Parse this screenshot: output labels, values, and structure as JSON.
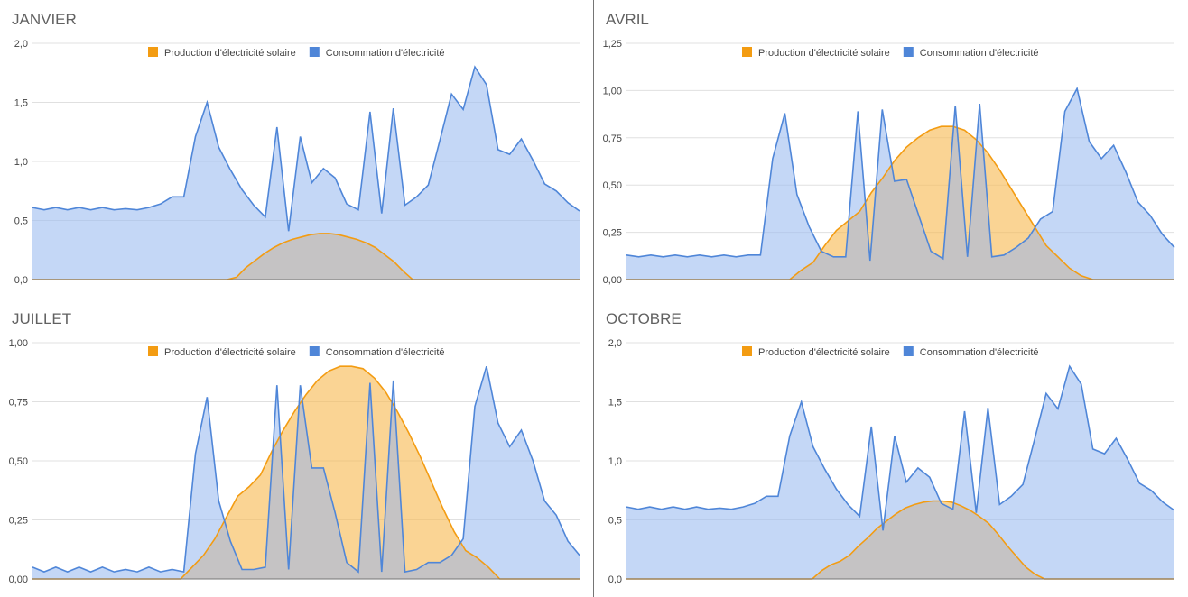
{
  "colors": {
    "production": "#f39c12",
    "production_fill": "#f7bd5a",
    "consommation": "#4f86d8",
    "consommation_fill": "#9dbcf0",
    "overlap_fill": "#c5c3c4",
    "grid": "#e0e0e0",
    "axis": "#757575"
  },
  "chart_data": [
    {
      "type": "area",
      "title": "JANVIER",
      "legend_position": "top",
      "grid": true,
      "ylim": [
        0,
        2.0
      ],
      "yticks": [
        "0,0",
        "0,5",
        "1,0",
        "1,5",
        "2,0"
      ],
      "series": [
        {
          "name": "Production d'électricité solaire",
          "values": [
            0,
            0,
            0,
            0,
            0,
            0,
            0,
            0,
            0,
            0,
            0,
            0,
            0,
            0,
            0,
            0,
            0,
            0,
            0,
            0,
            0,
            0,
            0.02,
            0.1,
            0.16,
            0.22,
            0.27,
            0.31,
            0.34,
            0.36,
            0.38,
            0.39,
            0.39,
            0.38,
            0.36,
            0.34,
            0.31,
            0.27,
            0.21,
            0.15,
            0.07,
            0,
            0,
            0,
            0,
            0,
            0,
            0,
            0,
            0,
            0,
            0,
            0,
            0,
            0,
            0,
            0,
            0,
            0,
            0
          ]
        },
        {
          "name": "Consommation d'électricité",
          "values": [
            0.61,
            0.59,
            0.61,
            0.59,
            0.61,
            0.59,
            0.61,
            0.59,
            0.6,
            0.59,
            0.61,
            0.64,
            0.7,
            0.7,
            1.21,
            1.5,
            1.12,
            0.93,
            0.76,
            0.63,
            0.53,
            1.29,
            0.41,
            1.21,
            0.82,
            0.94,
            0.86,
            0.64,
            0.59,
            1.42,
            0.56,
            1.45,
            0.63,
            0.7,
            0.8,
            1.18,
            1.57,
            1.44,
            1.8,
            1.65,
            1.1,
            1.06,
            1.19,
            1.01,
            0.81,
            0.75,
            0.65,
            0.58
          ]
        }
      ]
    },
    {
      "type": "area",
      "title": "AVRIL",
      "legend_position": "top",
      "grid": true,
      "ylim": [
        0,
        1.25
      ],
      "yticks": [
        "0,00",
        "0,25",
        "0,50",
        "0,75",
        "1,00",
        "1,25"
      ],
      "series": [
        {
          "name": "Production d'électricité solaire",
          "values": [
            0,
            0,
            0,
            0,
            0,
            0,
            0,
            0,
            0,
            0,
            0,
            0,
            0,
            0,
            0,
            0.05,
            0.09,
            0.18,
            0.26,
            0.31,
            0.36,
            0.46,
            0.54,
            0.63,
            0.7,
            0.75,
            0.79,
            0.81,
            0.81,
            0.79,
            0.74,
            0.67,
            0.58,
            0.48,
            0.38,
            0.28,
            0.18,
            0.12,
            0.06,
            0.02,
            0,
            0,
            0,
            0,
            0,
            0,
            0,
            0
          ]
        },
        {
          "name": "Consommation d'électricité",
          "values": [
            0.13,
            0.12,
            0.13,
            0.12,
            0.13,
            0.12,
            0.13,
            0.12,
            0.13,
            0.12,
            0.13,
            0.13,
            0.64,
            0.88,
            0.45,
            0.28,
            0.15,
            0.12,
            0.12,
            0.89,
            0.1,
            0.9,
            0.52,
            0.53,
            0.34,
            0.15,
            0.11,
            0.92,
            0.12,
            0.93,
            0.12,
            0.13,
            0.17,
            0.22,
            0.32,
            0.36,
            0.89,
            1.01,
            0.73,
            0.64,
            0.71,
            0.57,
            0.41,
            0.34,
            0.24,
            0.17
          ]
        }
      ]
    },
    {
      "type": "area",
      "title": "JUILLET",
      "legend_position": "top",
      "grid": true,
      "ylim": [
        0,
        1.0
      ],
      "yticks": [
        "0,00",
        "0,25",
        "0,50",
        "0,75",
        "1,00"
      ],
      "series": [
        {
          "name": "Production d'électricité solaire",
          "values": [
            0,
            0,
            0,
            0,
            0,
            0,
            0,
            0,
            0,
            0,
            0,
            0,
            0,
            0,
            0.05,
            0.1,
            0.17,
            0.26,
            0.35,
            0.39,
            0.44,
            0.54,
            0.63,
            0.71,
            0.78,
            0.84,
            0.88,
            0.9,
            0.9,
            0.89,
            0.85,
            0.79,
            0.71,
            0.62,
            0.52,
            0.41,
            0.3,
            0.2,
            0.12,
            0.09,
            0.05,
            0,
            0,
            0,
            0,
            0,
            0,
            0,
            0
          ]
        },
        {
          "name": "Consommation d'électricité",
          "values": [
            0.05,
            0.03,
            0.05,
            0.03,
            0.05,
            0.03,
            0.05,
            0.03,
            0.04,
            0.03,
            0.05,
            0.03,
            0.04,
            0.03,
            0.53,
            0.77,
            0.33,
            0.16,
            0.04,
            0.04,
            0.05,
            0.82,
            0.04,
            0.82,
            0.47,
            0.47,
            0.28,
            0.07,
            0.03,
            0.83,
            0.03,
            0.84,
            0.03,
            0.04,
            0.07,
            0.07,
            0.1,
            0.17,
            0.73,
            0.9,
            0.66,
            0.56,
            0.63,
            0.5,
            0.33,
            0.27,
            0.16,
            0.1
          ]
        }
      ]
    },
    {
      "type": "area",
      "title": "OCTOBRE",
      "legend_position": "top",
      "grid": true,
      "ylim": [
        0,
        2.0
      ],
      "yticks": [
        "0,0",
        "0,5",
        "1,0",
        "1,5",
        "2,0"
      ],
      "series": [
        {
          "name": "Production d'électricité solaire",
          "values": [
            0,
            0,
            0,
            0,
            0,
            0,
            0,
            0,
            0,
            0,
            0,
            0,
            0,
            0,
            0,
            0,
            0,
            0,
            0,
            0,
            0,
            0.07,
            0.12,
            0.15,
            0.2,
            0.28,
            0.35,
            0.43,
            0.49,
            0.55,
            0.6,
            0.63,
            0.65,
            0.66,
            0.66,
            0.65,
            0.62,
            0.58,
            0.53,
            0.47,
            0.38,
            0.28,
            0.19,
            0.1,
            0.04,
            0,
            0,
            0,
            0,
            0,
            0,
            0,
            0,
            0,
            0,
            0,
            0,
            0,
            0,
            0
          ]
        },
        {
          "name": "Consommation d'électricité",
          "values": [
            0.61,
            0.59,
            0.61,
            0.59,
            0.61,
            0.59,
            0.61,
            0.59,
            0.6,
            0.59,
            0.61,
            0.64,
            0.7,
            0.7,
            1.21,
            1.5,
            1.12,
            0.93,
            0.76,
            0.63,
            0.53,
            1.29,
            0.41,
            1.21,
            0.82,
            0.94,
            0.86,
            0.64,
            0.59,
            1.42,
            0.56,
            1.45,
            0.63,
            0.7,
            0.8,
            1.18,
            1.57,
            1.44,
            1.8,
            1.65,
            1.1,
            1.06,
            1.19,
            1.01,
            0.81,
            0.75,
            0.65,
            0.58
          ]
        }
      ]
    }
  ]
}
